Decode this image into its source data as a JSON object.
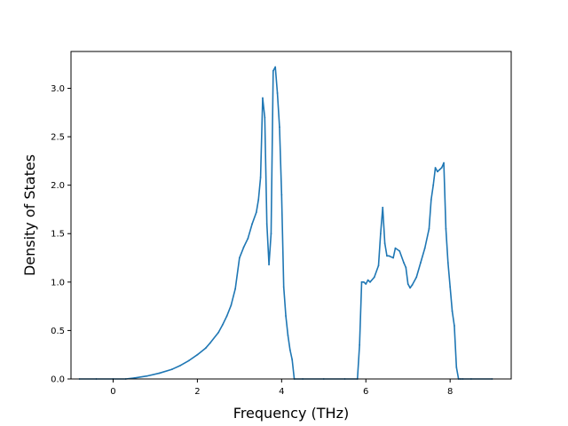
{
  "chart_data": {
    "type": "line",
    "title": "",
    "xlabel": "Frequency (THz)",
    "ylabel": "Density of States",
    "xlim": [
      -1.0,
      9.45
    ],
    "ylim": [
      0.0,
      3.38
    ],
    "grid": false,
    "legend": "none",
    "colors": {
      "line": "#1f77b4",
      "axes": "#000000",
      "background": "#ffffff"
    },
    "x_ticks": [
      0,
      2,
      4,
      6,
      8
    ],
    "x_tick_labels": [
      "0",
      "2",
      "4",
      "6",
      "8"
    ],
    "y_ticks": [
      0.0,
      0.5,
      1.0,
      1.5,
      2.0,
      2.5,
      3.0
    ],
    "y_tick_labels": [
      "0.0",
      "0.5",
      "1.0",
      "1.5",
      "2.0",
      "2.5",
      "3.0"
    ],
    "series": [
      {
        "x": [
          -0.8,
          -0.4,
          0.0,
          0.3,
          0.5,
          0.8,
          1.1,
          1.4,
          1.6,
          1.8,
          2.0,
          2.2,
          2.3,
          2.5,
          2.6,
          2.7,
          2.8,
          2.9,
          3.0,
          3.1,
          3.2,
          3.3,
          3.4,
          3.45,
          3.5,
          3.55,
          3.6,
          3.65,
          3.7,
          3.75,
          3.8,
          3.85,
          3.9,
          3.95,
          4.0,
          4.05,
          4.1,
          4.15,
          4.2,
          4.25,
          4.3,
          4.5,
          5.0,
          5.5,
          5.8,
          5.85,
          5.9,
          5.95,
          6.0,
          6.05,
          6.1,
          6.2,
          6.3,
          6.35,
          6.4,
          6.45,
          6.5,
          6.55,
          6.65,
          6.7,
          6.8,
          6.9,
          6.95,
          7.0,
          7.05,
          7.1,
          7.2,
          7.3,
          7.4,
          7.5,
          7.55,
          7.6,
          7.65,
          7.7,
          7.75,
          7.8,
          7.85,
          7.9,
          7.95,
          8.0,
          8.05,
          8.1,
          8.15,
          8.2,
          8.25,
          8.3,
          8.5,
          9.0
        ],
        "y": [
          0.0,
          0.0,
          0.0,
          0.0,
          0.01,
          0.03,
          0.06,
          0.1,
          0.14,
          0.19,
          0.25,
          0.32,
          0.37,
          0.48,
          0.56,
          0.65,
          0.76,
          0.93,
          1.25,
          1.36,
          1.45,
          1.6,
          1.72,
          1.85,
          2.08,
          2.9,
          2.7,
          1.6,
          1.18,
          1.5,
          3.18,
          3.22,
          2.95,
          2.6,
          1.9,
          0.95,
          0.65,
          0.45,
          0.3,
          0.2,
          0.0,
          0.0,
          0.0,
          0.0,
          0.0,
          0.35,
          1.0,
          1.0,
          0.98,
          1.02,
          1.0,
          1.05,
          1.17,
          1.5,
          1.77,
          1.4,
          1.27,
          1.27,
          1.25,
          1.35,
          1.32,
          1.2,
          1.15,
          0.98,
          0.94,
          0.97,
          1.05,
          1.2,
          1.35,
          1.55,
          1.85,
          2.0,
          2.18,
          2.14,
          2.16,
          2.18,
          2.23,
          1.55,
          1.2,
          0.95,
          0.7,
          0.55,
          0.12,
          0.0,
          0.0,
          0.0,
          0.0,
          0.0
        ]
      }
    ]
  }
}
